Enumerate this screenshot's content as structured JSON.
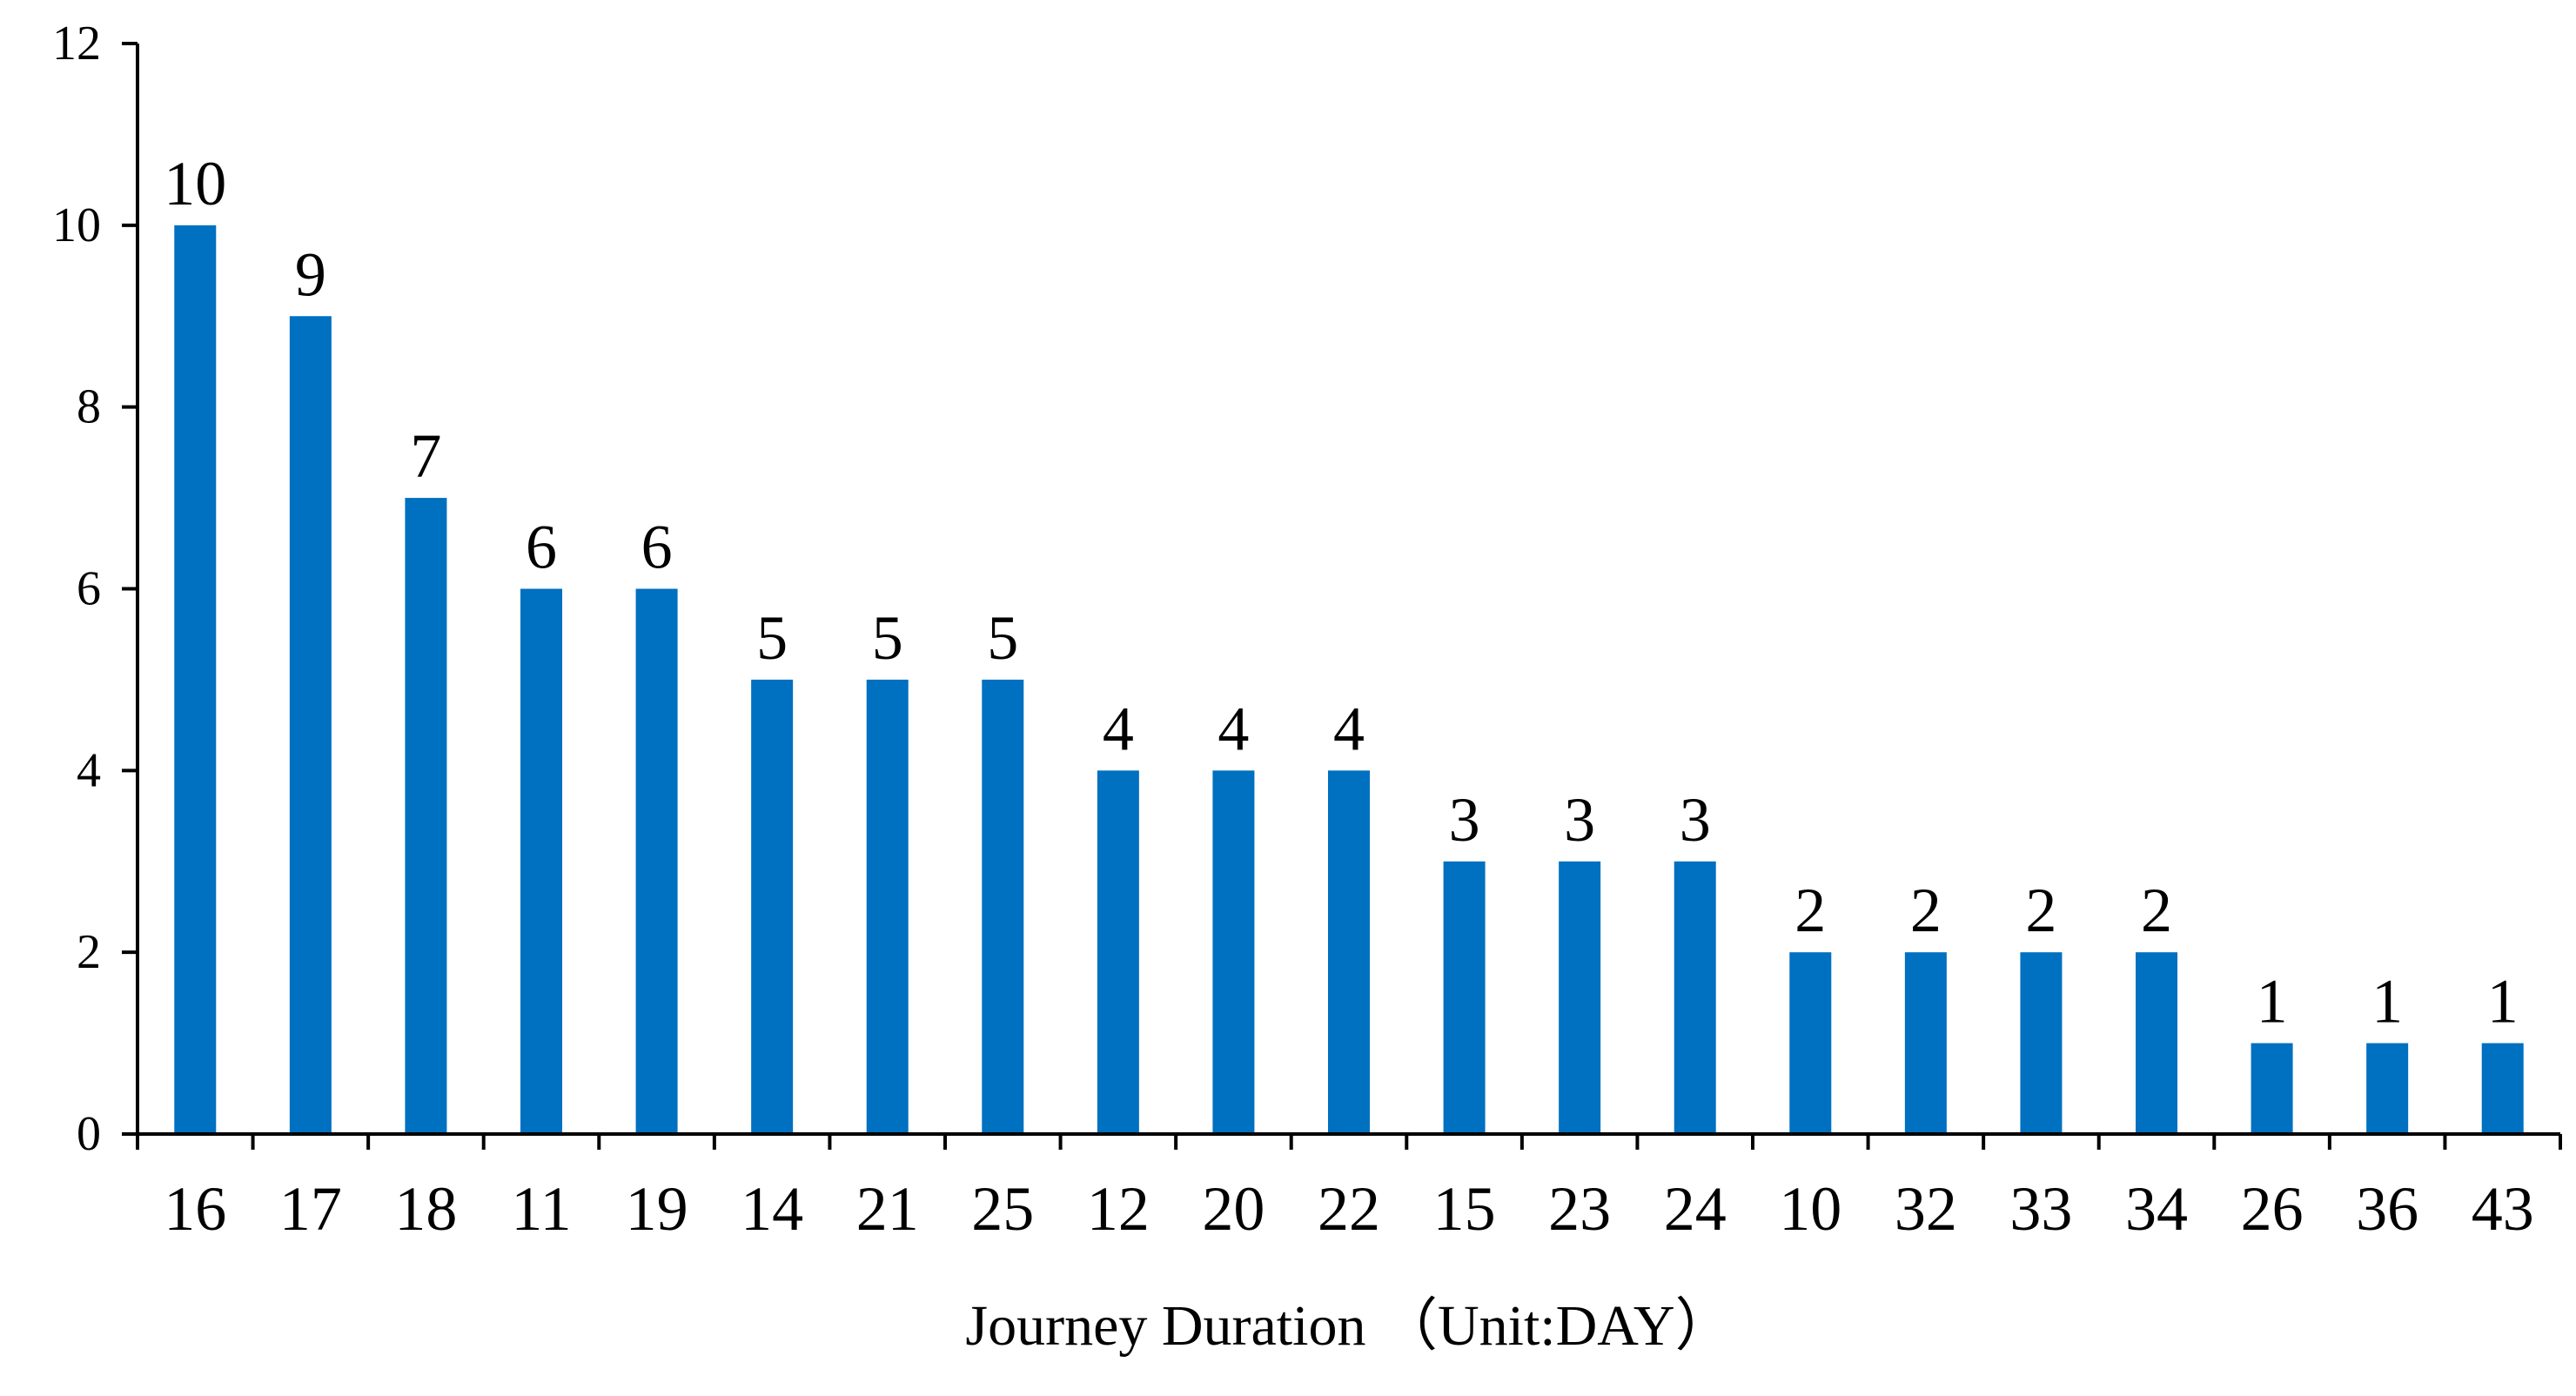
{
  "chart_data": {
    "type": "bar",
    "categories": [
      "16",
      "17",
      "18",
      "11",
      "19",
      "14",
      "21",
      "25",
      "12",
      "20",
      "22",
      "15",
      "23",
      "24",
      "10",
      "32",
      "33",
      "34",
      "26",
      "36",
      "43"
    ],
    "values": [
      10,
      9,
      7,
      6,
      6,
      5,
      5,
      5,
      4,
      4,
      4,
      3,
      3,
      3,
      2,
      2,
      2,
      2,
      1,
      1,
      1
    ],
    "data_labels": [
      "10",
      "9",
      "7",
      "6",
      "6",
      "5",
      "5",
      "5",
      "4",
      "4",
      "4",
      "3",
      "3",
      "3",
      "2",
      "2",
      "2",
      "2",
      "1",
      "1",
      "1"
    ],
    "title": "",
    "xlabel": "Journey Duration （Unit:DAY）",
    "ylabel": "",
    "ylim": [
      0,
      12
    ],
    "yticks": [
      "0",
      "2",
      "4",
      "6",
      "8",
      "10",
      "12"
    ],
    "grid": false,
    "legend": "none",
    "bar_color": "#0070C0",
    "axis_color": "#000000"
  }
}
